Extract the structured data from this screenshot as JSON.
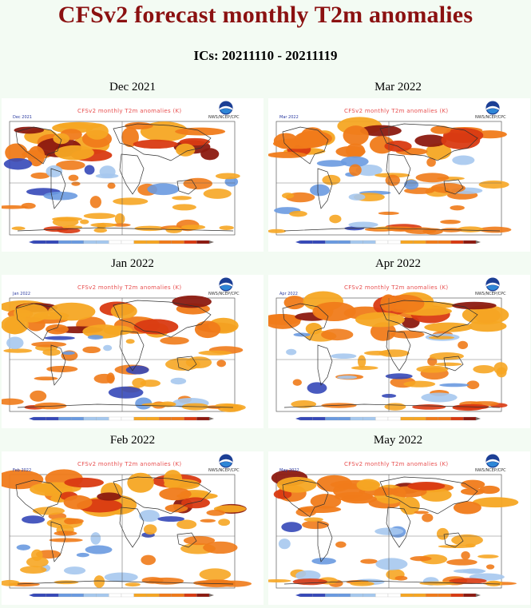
{
  "title": "CFSv2 forecast monthly T2m anomalies",
  "ics": "ICs: 20211110 - 20211119",
  "colors": {
    "title": "#8b1111",
    "warm_light": "#f6a623",
    "warm_mid": "#f07b1a",
    "warm_strong": "#d93a12",
    "warm_extreme": "#8c1a10",
    "cool_light": "#a6c8ee",
    "cool_mid": "#6a9ae0",
    "cool_strong": "#3548b8",
    "land_line": "#303030"
  },
  "panels": [
    {
      "label": "Dec 2021",
      "tag": "Dec 2021",
      "header": "CFSv2 monthly T2m anomalies (K)",
      "org": "NWS/NCEP/CPC",
      "logo": "noaa-logo"
    },
    {
      "label": "Mar 2022",
      "tag": "Mar 2022",
      "header": "CFSv2 monthly T2m anomalies (K)",
      "org": "NWS/NCEP/CPC",
      "logo": "noaa-logo"
    },
    {
      "label": "Jan 2022",
      "tag": "Jan 2022",
      "header": "CFSv2 monthly T2m anomalies (K)",
      "org": "NWS/NCEP/CPC",
      "logo": "noaa-logo"
    },
    {
      "label": "Apr 2022",
      "tag": "Apr 2022",
      "header": "CFSv2 monthly T2m anomalies (K)",
      "org": "NWS/NCEP/CPC",
      "logo": "noaa-logo"
    },
    {
      "label": "Feb 2022",
      "tag": "Feb 2022",
      "header": "CFSv2 monthly T2m anomalies (K)",
      "org": "NWS/NCEP/CPC",
      "logo": "noaa-logo"
    },
    {
      "label": "May 2022",
      "tag": "May 2022",
      "header": "CFSv2 monthly T2m anomalies (K)",
      "org": "NWS/NCEP/CPC",
      "logo": "noaa-logo"
    }
  ]
}
